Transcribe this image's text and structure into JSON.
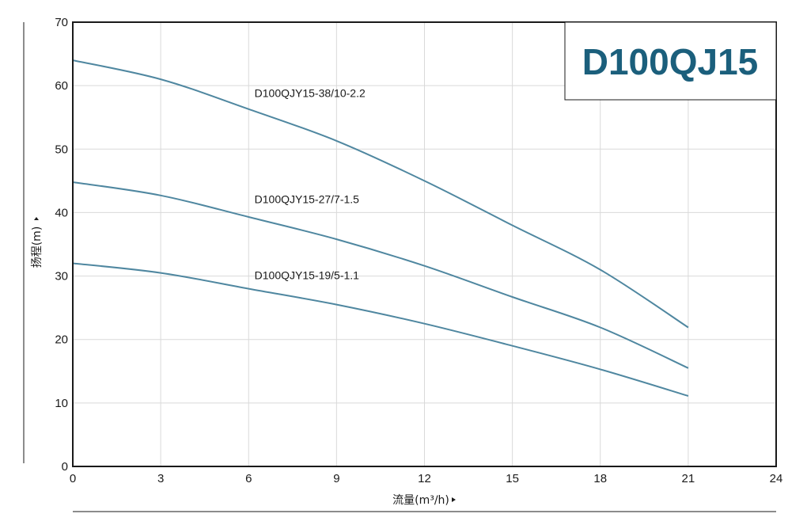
{
  "chart_data": {
    "type": "line",
    "title": "D100QJ15",
    "xlabel": "流量(m³/h)",
    "ylabel": "扬程(m)",
    "xlim": [
      0,
      24
    ],
    "ylim": [
      0,
      70
    ],
    "xticks": [
      0,
      3,
      6,
      9,
      12,
      15,
      18,
      21,
      24
    ],
    "yticks": [
      0,
      10,
      20,
      30,
      40,
      50,
      60,
      70
    ],
    "grid": true,
    "legend": "inline labels",
    "colors": {
      "line": "#4f87a0",
      "title": "#1b5f7c",
      "grid": "#d9d9d9",
      "axis": "#1a1a1a"
    },
    "series": [
      {
        "name": "D100QJY15-38/10-2.2",
        "x": [
          0,
          3,
          6,
          9,
          12,
          15,
          18,
          21
        ],
        "y": [
          64,
          61,
          56.3,
          51.3,
          45,
          38,
          31,
          21.9
        ]
      },
      {
        "name": "D100QJY15-27/7-1.5",
        "x": [
          0,
          3,
          6,
          9,
          12,
          15,
          18,
          21
        ],
        "y": [
          44.8,
          42.7,
          39.3,
          35.8,
          31.6,
          26.7,
          21.9,
          15.5
        ]
      },
      {
        "name": "D100QJY15-19/5-1.1",
        "x": [
          0,
          3,
          6,
          9,
          12,
          15,
          18,
          21
        ],
        "y": [
          32,
          30.5,
          28,
          25.5,
          22.5,
          19,
          15.3,
          11.1
        ]
      }
    ]
  }
}
